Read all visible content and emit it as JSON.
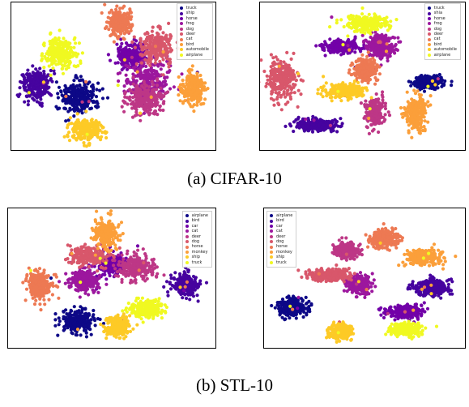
{
  "captions": {
    "a": "(a) CIFAR-10",
    "b": "(b) STL-10"
  },
  "chart_data": [
    {
      "type": "scatter",
      "id": "cifar-left",
      "dataset": "CIFAR-10",
      "grid": false,
      "legend_position": "top-right",
      "legend": [
        "truck",
        "ship",
        "horse",
        "frog",
        "dog",
        "deer",
        "cat",
        "bird",
        "automobile",
        "airplane"
      ],
      "colors": [
        "#0d0887",
        "#46039f",
        "#7201a8",
        "#9c179e",
        "#bd3786",
        "#d8576b",
        "#ed7953",
        "#fb9f3a",
        "#fdca26",
        "#f0f921"
      ],
      "clusters": [
        {
          "class": "truck",
          "x": 0.33,
          "y": 0.64,
          "sx": 0.08,
          "sy": 0.1
        },
        {
          "class": "ship",
          "x": 0.12,
          "y": 0.56,
          "sx": 0.06,
          "sy": 0.1
        },
        {
          "class": "horse",
          "x": 0.59,
          "y": 0.36,
          "sx": 0.07,
          "sy": 0.07
        },
        {
          "class": "frog",
          "x": 0.67,
          "y": 0.53,
          "sx": 0.1,
          "sy": 0.12
        },
        {
          "class": "dog",
          "x": 0.66,
          "y": 0.66,
          "sx": 0.08,
          "sy": 0.1
        },
        {
          "class": "deer",
          "x": 0.71,
          "y": 0.3,
          "sx": 0.07,
          "sy": 0.1
        },
        {
          "class": "cat",
          "x": 0.53,
          "y": 0.14,
          "sx": 0.05,
          "sy": 0.08
        },
        {
          "class": "bird",
          "x": 0.89,
          "y": 0.58,
          "sx": 0.05,
          "sy": 0.1
        },
        {
          "class": "automobile",
          "x": 0.37,
          "y": 0.86,
          "sx": 0.07,
          "sy": 0.07
        },
        {
          "class": "airplane",
          "x": 0.24,
          "y": 0.34,
          "sx": 0.07,
          "sy": 0.09
        }
      ]
    },
    {
      "type": "scatter",
      "id": "cifar-right",
      "dataset": "CIFAR-10",
      "grid": false,
      "legend_position": "top-right",
      "legend": [
        "truck",
        "shia",
        "horse",
        "frog",
        "dog",
        "deer",
        "cat",
        "bird",
        "automobile",
        "airplane"
      ],
      "colors": [
        "#0d0887",
        "#46039f",
        "#7201a8",
        "#9c179e",
        "#bd3786",
        "#d8576b",
        "#ed7953",
        "#fb9f3a",
        "#fdca26",
        "#f0f921"
      ],
      "clusters": [
        {
          "class": "truck",
          "x": 0.82,
          "y": 0.54,
          "sx": 0.07,
          "sy": 0.04
        },
        {
          "class": "shia",
          "x": 0.27,
          "y": 0.83,
          "sx": 0.09,
          "sy": 0.04
        },
        {
          "class": "horse",
          "x": 0.4,
          "y": 0.3,
          "sx": 0.08,
          "sy": 0.04
        },
        {
          "class": "frog",
          "x": 0.59,
          "y": 0.3,
          "sx": 0.06,
          "sy": 0.07
        },
        {
          "class": "dog",
          "x": 0.56,
          "y": 0.74,
          "sx": 0.04,
          "sy": 0.09
        },
        {
          "class": "deer",
          "x": 0.11,
          "y": 0.52,
          "sx": 0.07,
          "sy": 0.12
        },
        {
          "class": "cat",
          "x": 0.51,
          "y": 0.46,
          "sx": 0.05,
          "sy": 0.07
        },
        {
          "class": "bird",
          "x": 0.76,
          "y": 0.76,
          "sx": 0.05,
          "sy": 0.1
        },
        {
          "class": "automobile",
          "x": 0.41,
          "y": 0.6,
          "sx": 0.09,
          "sy": 0.04
        },
        {
          "class": "airplane",
          "x": 0.52,
          "y": 0.14,
          "sx": 0.1,
          "sy": 0.05
        }
      ]
    },
    {
      "type": "scatter",
      "id": "stl-left",
      "dataset": "STL-10",
      "grid": false,
      "legend_position": "top-right",
      "legend": [
        "airplane",
        "bird",
        "car",
        "cat",
        "deer",
        "dog",
        "horse",
        "monkey",
        "ship",
        "truck"
      ],
      "colors": [
        "#0d0887",
        "#46039f",
        "#7201a8",
        "#9c179e",
        "#bd3786",
        "#d8576b",
        "#ed7953",
        "#fb9f3a",
        "#fdca26",
        "#f0f921"
      ],
      "clusters": [
        {
          "class": "airplane",
          "x": 0.34,
          "y": 0.81,
          "sx": 0.07,
          "sy": 0.07
        },
        {
          "class": "bird",
          "x": 0.86,
          "y": 0.55,
          "sx": 0.06,
          "sy": 0.07
        },
        {
          "class": "car",
          "x": 0.5,
          "y": 0.4,
          "sx": 0.07,
          "sy": 0.07
        },
        {
          "class": "cat",
          "x": 0.36,
          "y": 0.52,
          "sx": 0.06,
          "sy": 0.07
        },
        {
          "class": "deer",
          "x": 0.62,
          "y": 0.42,
          "sx": 0.08,
          "sy": 0.08
        },
        {
          "class": "dog",
          "x": 0.38,
          "y": 0.34,
          "sx": 0.08,
          "sy": 0.06
        },
        {
          "class": "horse",
          "x": 0.15,
          "y": 0.55,
          "sx": 0.05,
          "sy": 0.09
        },
        {
          "class": "monkey",
          "x": 0.47,
          "y": 0.18,
          "sx": 0.05,
          "sy": 0.09
        },
        {
          "class": "ship",
          "x": 0.53,
          "y": 0.85,
          "sx": 0.05,
          "sy": 0.07
        },
        {
          "class": "truck",
          "x": 0.67,
          "y": 0.72,
          "sx": 0.07,
          "sy": 0.06
        }
      ]
    },
    {
      "type": "scatter",
      "id": "stl-right",
      "dataset": "STL-10",
      "grid": false,
      "legend_position": "top-left",
      "legend": [
        "airplane",
        "bird",
        "car",
        "cat",
        "deer",
        "dog",
        "horse",
        "monkey",
        "ship",
        "truck"
      ],
      "colors": [
        "#0d0887",
        "#46039f",
        "#7201a8",
        "#9c179e",
        "#bd3786",
        "#d8576b",
        "#ed7953",
        "#fb9f3a",
        "#fdca26",
        "#f0f921"
      ],
      "clusters": [
        {
          "class": "airplane",
          "x": 0.14,
          "y": 0.71,
          "sx": 0.07,
          "sy": 0.06
        },
        {
          "class": "bird",
          "x": 0.83,
          "y": 0.57,
          "sx": 0.08,
          "sy": 0.05
        },
        {
          "class": "car",
          "x": 0.7,
          "y": 0.74,
          "sx": 0.08,
          "sy": 0.04
        },
        {
          "class": "cat",
          "x": 0.47,
          "y": 0.54,
          "sx": 0.05,
          "sy": 0.06
        },
        {
          "class": "deer",
          "x": 0.41,
          "y": 0.3,
          "sx": 0.05,
          "sy": 0.05
        },
        {
          "class": "dog",
          "x": 0.33,
          "y": 0.48,
          "sx": 0.1,
          "sy": 0.04
        },
        {
          "class": "horse",
          "x": 0.6,
          "y": 0.22,
          "sx": 0.06,
          "sy": 0.06
        },
        {
          "class": "monkey",
          "x": 0.79,
          "y": 0.35,
          "sx": 0.08,
          "sy": 0.05
        },
        {
          "class": "ship",
          "x": 0.38,
          "y": 0.88,
          "sx": 0.05,
          "sy": 0.05
        },
        {
          "class": "truck",
          "x": 0.71,
          "y": 0.87,
          "sx": 0.07,
          "sy": 0.04
        }
      ]
    }
  ]
}
